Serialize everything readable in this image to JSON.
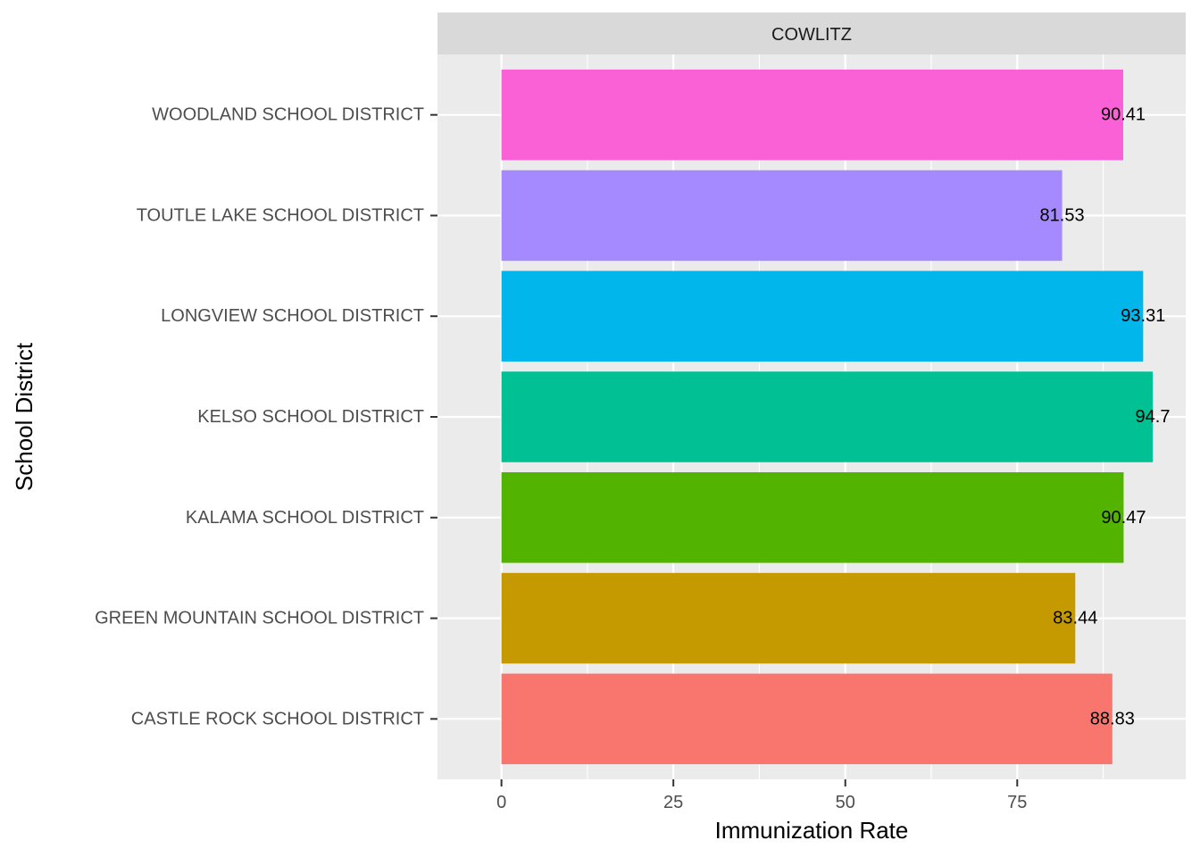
{
  "chart_data": {
    "type": "bar",
    "orientation": "horizontal",
    "facet_label": "COWLITZ",
    "xlabel": "Immunization Rate",
    "ylabel": "School District",
    "xlim": [
      -9.3,
      99.5
    ],
    "x_ticks": [
      0,
      25,
      50,
      75
    ],
    "grid": true,
    "legend": "none",
    "categories": [
      "CASTLE ROCK SCHOOL DISTRICT",
      "GREEN MOUNTAIN SCHOOL DISTRICT",
      "KALAMA SCHOOL DISTRICT",
      "KELSO SCHOOL DISTRICT",
      "LONGVIEW SCHOOL DISTRICT",
      "TOUTLE LAKE SCHOOL DISTRICT",
      "WOODLAND SCHOOL DISTRICT"
    ],
    "values": [
      88.83,
      83.44,
      90.47,
      94.7,
      93.31,
      81.53,
      90.41
    ],
    "data_labels": [
      "88.83",
      "83.44",
      "90.47",
      "94.7",
      "93.31",
      "81.53",
      "90.41"
    ],
    "colors": [
      "#F8766D",
      "#C49A00",
      "#53B400",
      "#00C094",
      "#00B6EB",
      "#A58AFF",
      "#FB61D7"
    ]
  }
}
